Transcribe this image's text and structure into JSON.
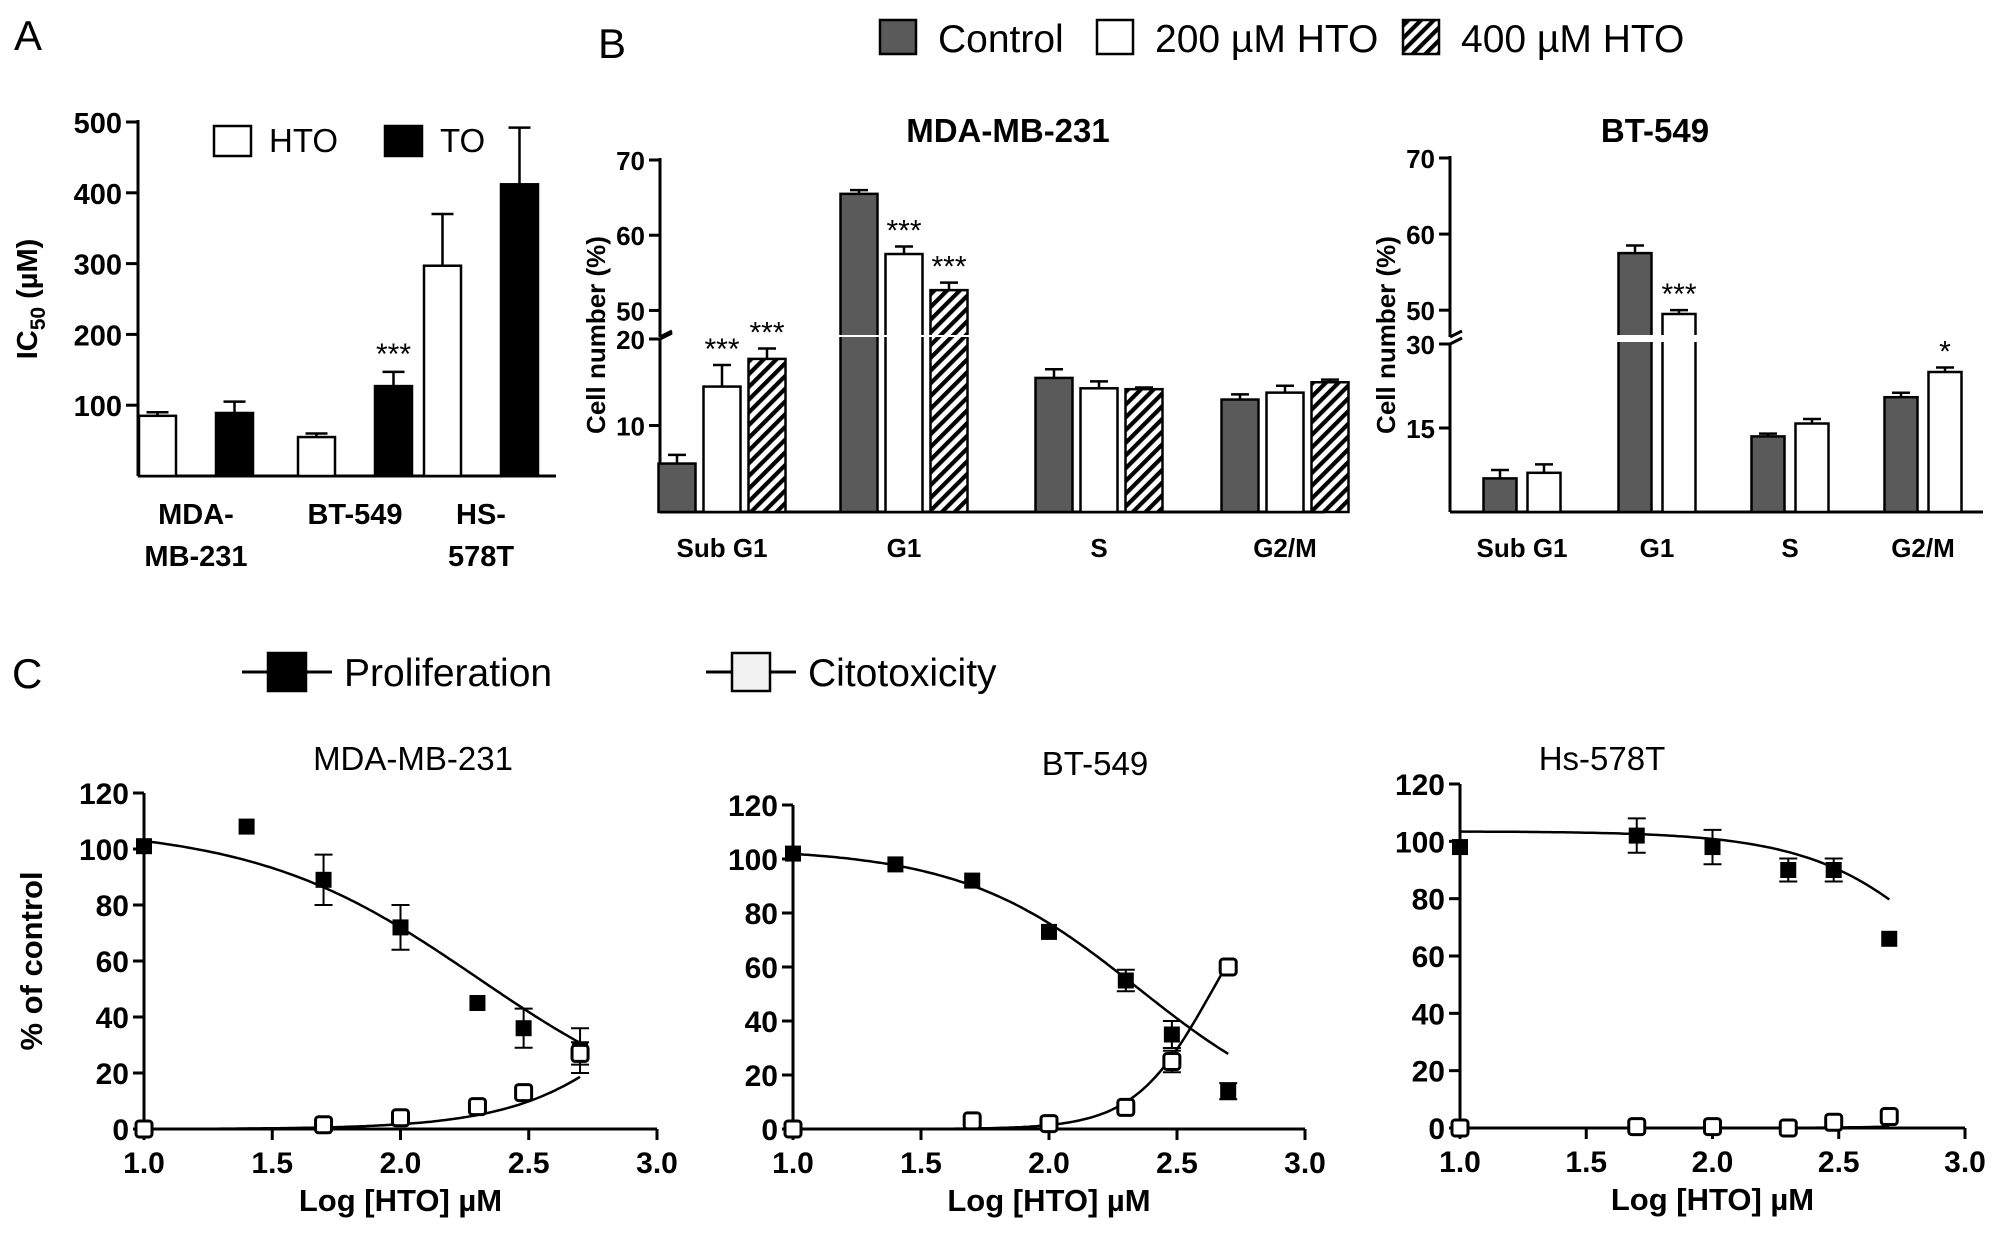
{
  "chart_data": [
    {
      "panel": "A",
      "type": "bar",
      "title": "",
      "ylabel_main": "IC",
      "ylabel_sub": "50",
      "ylabel_unit": "(µM)",
      "xlabel": "",
      "ylim": [
        0,
        500
      ],
      "yticks": [
        "100",
        "200",
        "300",
        "400",
        "500"
      ],
      "categories": [
        [
          "MDA-",
          "MB-231"
        ],
        [
          "BT-549"
        ],
        [
          "HS-",
          "578T"
        ]
      ],
      "series": [
        {
          "name": "HTO",
          "fill": "#ffffff",
          "values": [
            85,
            55,
            297
          ],
          "errors": [
            5,
            5,
            73
          ]
        },
        {
          "name": "TO",
          "fill": "#000000",
          "values": [
            89,
            127,
            412
          ],
          "errors": [
            16,
            20,
            80
          ]
        }
      ],
      "annotations": [
        {
          "category": 1,
          "series": 1,
          "text": "***"
        }
      ]
    },
    {
      "panel": "B",
      "type": "bar",
      "legend": [
        {
          "name": "Control",
          "pattern": "dark"
        },
        {
          "name": "200 µM HTO",
          "pattern": "white"
        },
        {
          "name": "400 µM HTO",
          "pattern": "hatched"
        }
      ],
      "charts": [
        {
          "title": "MDA-MB-231",
          "ylabel": "Cell number (%)",
          "ylim": [
            0,
            70
          ],
          "axis_break": [
            20,
            47
          ],
          "yticks": [
            "10",
            "20",
            "50",
            "60",
            "70"
          ],
          "categories": [
            "Sub G1",
            "G1",
            "S",
            "G2/M"
          ],
          "series": [
            {
              "name": "Control",
              "values": [
                5.6,
                65.5,
                15.5,
                13
              ],
              "errors": [
                1.0,
                0.5,
                1.0,
                0.6
              ]
            },
            {
              "name": "200 µM HTO",
              "values": [
                14.5,
                57.5,
                14.3,
                13.8
              ],
              "errors": [
                2.5,
                1.0,
                0.8,
                0.8
              ]
            },
            {
              "name": "400 µM HTO",
              "values": [
                17.7,
                52.7,
                14.2,
                15
              ],
              "errors": [
                1.2,
                1.0,
                0.2,
                0.3
              ]
            }
          ],
          "annotations": [
            {
              "category": 0,
              "series": 1,
              "text": "***"
            },
            {
              "category": 0,
              "series": 2,
              "text": "***"
            },
            {
              "category": 1,
              "series": 1,
              "text": "***"
            },
            {
              "category": 1,
              "series": 2,
              "text": "***"
            }
          ]
        },
        {
          "title": "BT-549",
          "ylabel": "Cell number (%)",
          "ylim": [
            0,
            70
          ],
          "axis_break": [
            30,
            47
          ],
          "yticks": [
            "15",
            "30",
            "50",
            "60",
            "70"
          ],
          "categories": [
            "Sub G1",
            "G1",
            "S",
            "G2/M"
          ],
          "series": [
            {
              "name": "Control",
              "values": [
                6,
                57.5,
                13.5,
                20.5
              ],
              "errors": [
                1.5,
                1.0,
                0.5,
                0.8
              ]
            },
            {
              "name": "200 µM HTO",
              "values": [
                7,
                49.5,
                15.8,
                25
              ],
              "errors": [
                1.5,
                0.5,
                0.8,
                0.8
              ]
            }
          ],
          "annotations": [
            {
              "category": 1,
              "series": 1,
              "text": "***"
            },
            {
              "category": 3,
              "series": 1,
              "text": "*"
            }
          ]
        }
      ]
    },
    {
      "panel": "C",
      "type": "scatter",
      "legend": [
        {
          "name": "Proliferation",
          "marker": "filled"
        },
        {
          "name": "Citotoxicity",
          "marker": "open"
        }
      ],
      "xlabel": "Log [HTO] µM",
      "ylabel": "% of control",
      "xlim": [
        1.0,
        3.0
      ],
      "ylim": [
        0,
        120
      ],
      "xticks": [
        "1.0",
        "1.5",
        "2.0",
        "2.5",
        "3.0"
      ],
      "yticks": [
        "0",
        "20",
        "40",
        "60",
        "80",
        "100",
        "120"
      ],
      "plots": [
        {
          "title": "MDA-MB-231",
          "proliferation": {
            "x": [
              1.0,
              1.4,
              1.7,
              2.0,
              2.3,
              2.48,
              2.7
            ],
            "y": [
              101,
              108,
              89,
              72,
              45,
              36,
              28
            ],
            "err": [
              0,
              0,
              9,
              8,
              0,
              7,
              8
            ],
            "fit": {
              "top": 108,
              "bottom": 0,
              "logIC50": 2.3,
              "hill": 1.0
            }
          },
          "cytotoxicity": {
            "x": [
              1.0,
              1.7,
              2.0,
              2.3,
              2.48,
              2.7
            ],
            "y": [
              0,
              1.5,
              4,
              8,
              13,
              27
            ],
            "err": [
              0,
              0,
              0,
              0,
              0,
              4
            ],
            "fit": {
              "top": 100,
              "bottom": 0,
              "logIC50": 3.1,
              "hill": 1.6
            }
          }
        },
        {
          "title": "BT-549",
          "proliferation": {
            "x": [
              1.0,
              1.4,
              1.7,
              2.0,
              2.3,
              2.48,
              2.7
            ],
            "y": [
              102,
              98,
              92,
              73,
              55,
              35,
              14
            ],
            "err": [
              0,
              0,
              0,
              0,
              4,
              5,
              3
            ],
            "fit": {
              "top": 104,
              "bottom": 0,
              "logIC50": 2.35,
              "hill": 1.25
            }
          },
          "cytotoxicity": {
            "x": [
              1.0,
              1.7,
              2.0,
              2.3,
              2.48,
              2.7
            ],
            "y": [
              0,
              3,
              2,
              8,
              25,
              60
            ],
            "err": [
              0,
              0,
              0,
              0,
              4,
              0
            ],
            "fit": {
              "top": 100,
              "bottom": 0,
              "logIC50": 2.63,
              "hill": 2.9
            }
          }
        },
        {
          "title": "Hs-578T",
          "proliferation": {
            "x": [
              1.0,
              1.7,
              2.0,
              2.3,
              2.48,
              2.7
            ],
            "y": [
              98,
              102,
              98,
              90,
              90,
              66
            ],
            "err": [
              0,
              6,
              6,
              4,
              4,
              0
            ],
            "fit": {
              "top": 103.5,
              "bottom": 0,
              "logIC50": 3.05,
              "hill": 1.5
            }
          },
          "cytotoxicity": {
            "x": [
              1.0,
              1.7,
              2.0,
              2.3,
              2.48,
              2.7
            ],
            "y": [
              0,
              0.5,
              0.5,
              0,
              2,
              4
            ],
            "err": [
              0,
              0,
              0,
              0,
              0,
              0
            ],
            "fit": {
              "top": 100,
              "bottom": 0,
              "logIC50": 3.8,
              "hill": 2.1
            }
          }
        }
      ]
    }
  ],
  "panel_labels": {
    "a": "A",
    "b": "B",
    "c": "C"
  }
}
